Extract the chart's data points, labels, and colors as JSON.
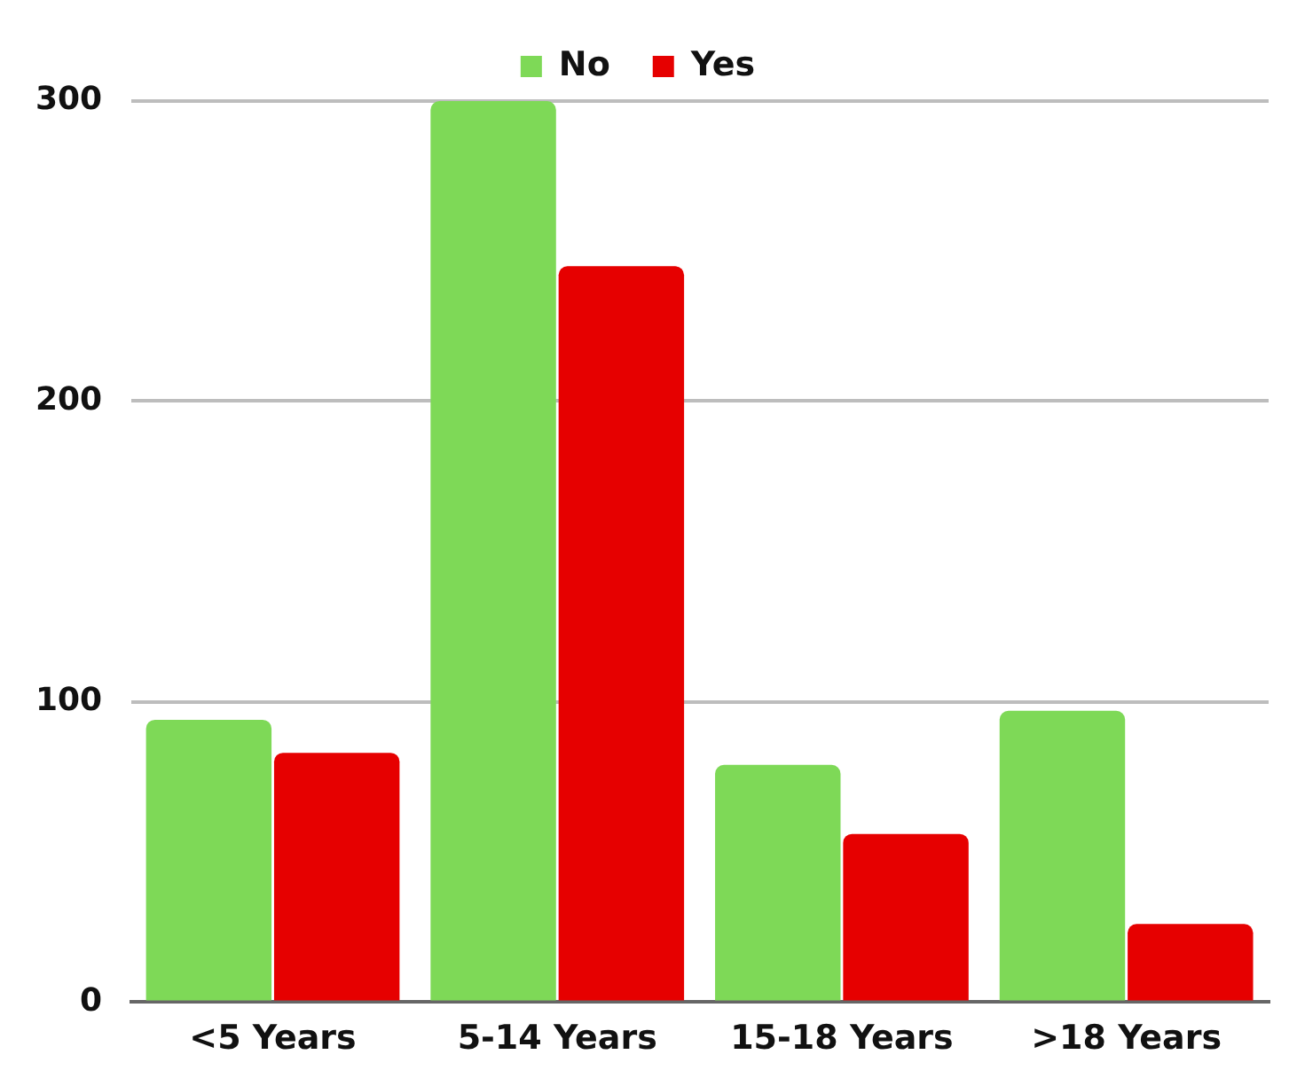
{
  "chart_data": {
    "type": "bar",
    "categories": [
      "<5 Years",
      "5-14 Years",
      "15-18 Years",
      ">18 Years"
    ],
    "series": [
      {
        "name": "No",
        "color": "#7ed957",
        "values": [
          94,
          300,
          79,
          97
        ]
      },
      {
        "name": "Yes",
        "color": "#e60000",
        "values": [
          83,
          245,
          56,
          26
        ]
      }
    ],
    "ylim": [
      0,
      300
    ],
    "yticks": [
      0,
      100,
      200,
      300
    ],
    "grid": "y",
    "legend": "top"
  }
}
